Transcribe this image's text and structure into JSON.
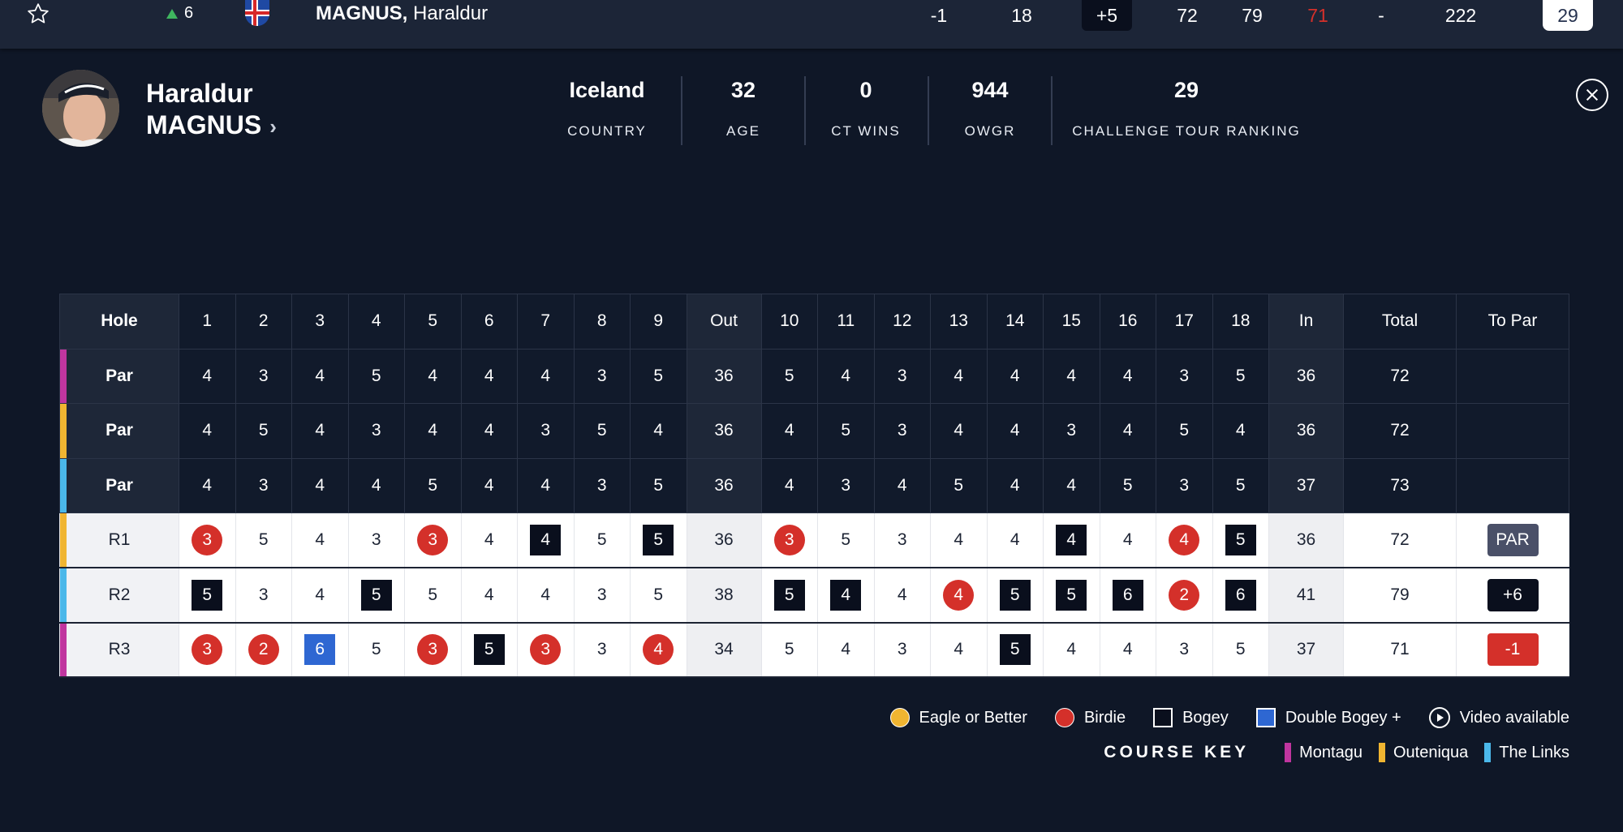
{
  "top_row": {
    "movement": "6",
    "last_name": "MAGNUS,",
    "first_name": "Haraldur",
    "today": "-1",
    "thru": "18",
    "to_par": "+5",
    "r1": "72",
    "r2": "79",
    "r3": "71",
    "r4": "-",
    "total": "222",
    "rank": "29"
  },
  "profile": {
    "first_name": "Haraldur",
    "last_name": "MAGNUS",
    "stats": [
      {
        "value": "Iceland",
        "label": "COUNTRY"
      },
      {
        "value": "32",
        "label": "AGE"
      },
      {
        "value": "0",
        "label": "CT WINS"
      },
      {
        "value": "944",
        "label": "OWGR"
      },
      {
        "value": "29",
        "label": "CHALLENGE TOUR RANKING"
      }
    ]
  },
  "scorecard": {
    "header": [
      "Hole",
      "1",
      "2",
      "3",
      "4",
      "5",
      "6",
      "7",
      "8",
      "9",
      "Out",
      "10",
      "11",
      "12",
      "13",
      "14",
      "15",
      "16",
      "17",
      "18",
      "In",
      "Total",
      "To Par"
    ],
    "par_rows": [
      {
        "label": "Par",
        "course": "montagu",
        "cells": [
          "4",
          "3",
          "4",
          "5",
          "4",
          "4",
          "4",
          "3",
          "5",
          "36",
          "5",
          "4",
          "3",
          "4",
          "4",
          "4",
          "4",
          "3",
          "5",
          "36",
          "72",
          ""
        ]
      },
      {
        "label": "Par",
        "course": "outeniqua",
        "cells": [
          "4",
          "5",
          "4",
          "3",
          "4",
          "4",
          "3",
          "5",
          "4",
          "36",
          "4",
          "5",
          "3",
          "4",
          "4",
          "3",
          "4",
          "5",
          "4",
          "36",
          "72",
          ""
        ]
      },
      {
        "label": "Par",
        "course": "links",
        "cells": [
          "4",
          "3",
          "4",
          "4",
          "5",
          "4",
          "4",
          "3",
          "5",
          "36",
          "4",
          "3",
          "4",
          "5",
          "4",
          "4",
          "5",
          "3",
          "5",
          "37",
          "73",
          ""
        ]
      }
    ],
    "rounds": [
      {
        "label": "R1",
        "course": "outeniqua",
        "scores": [
          "3",
          "5",
          "4",
          "3",
          "3",
          "4",
          "4",
          "5",
          "5",
          "36",
          "3",
          "5",
          "3",
          "4",
          "4",
          "4",
          "4",
          "4",
          "5",
          "36",
          "72"
        ],
        "types": [
          "b",
          "",
          "",
          "",
          "b",
          "",
          "o",
          "",
          "o",
          "",
          "b",
          "",
          "",
          "",
          "",
          "o",
          "",
          "b",
          "o",
          "",
          ""
        ],
        "to_par": "PAR",
        "to_par_color": "#4a5068"
      },
      {
        "label": "R2",
        "course": "links",
        "scores": [
          "5",
          "3",
          "4",
          "5",
          "5",
          "4",
          "4",
          "3",
          "5",
          "38",
          "5",
          "4",
          "4",
          "4",
          "5",
          "5",
          "6",
          "2",
          "6",
          "41",
          "79"
        ],
        "types": [
          "o",
          "",
          "",
          "o",
          "",
          "",
          "",
          "",
          "",
          "",
          "o",
          "o",
          "",
          "b",
          "o",
          "o",
          "o",
          "b",
          "o",
          "",
          ""
        ],
        "to_par": "+6",
        "to_par_color": "#0a0f1d"
      },
      {
        "label": "R3",
        "course": "montagu",
        "scores": [
          "3",
          "2",
          "6",
          "5",
          "3",
          "5",
          "3",
          "3",
          "4",
          "34",
          "5",
          "4",
          "3",
          "4",
          "5",
          "4",
          "4",
          "3",
          "5",
          "37",
          "71"
        ],
        "types": [
          "b",
          "b",
          "d",
          "",
          "b",
          "o",
          "b",
          "",
          "b",
          "",
          "",
          "",
          "",
          "",
          "o",
          "",
          "",
          "",
          "",
          "",
          ""
        ],
        "to_par": "-1",
        "to_par_color": "#d4302a"
      }
    ]
  },
  "legend": [
    {
      "label": "Eagle or Better",
      "icon": "eagle-dot",
      "color": "#f0b531"
    },
    {
      "label": "Birdie",
      "icon": "birdie-dot",
      "color": "#d4302a"
    },
    {
      "label": "Bogey",
      "icon": "bogey-square",
      "color": "#0a0f1d"
    },
    {
      "label": "Double Bogey +",
      "icon": "double-bogey-square",
      "color": "#2e67d2"
    },
    {
      "label": "Video available",
      "icon": "play-icon",
      "color": "#ffffff"
    }
  ],
  "course_key": {
    "title": "COURSE KEY",
    "courses": [
      {
        "id": "montagu",
        "label": "Montagu",
        "color": "#c0359f"
      },
      {
        "id": "outeniqua",
        "label": "Outeniqua",
        "color": "#f0b531"
      },
      {
        "id": "links",
        "label": "The Links",
        "color": "#4bb8ea"
      }
    ]
  }
}
